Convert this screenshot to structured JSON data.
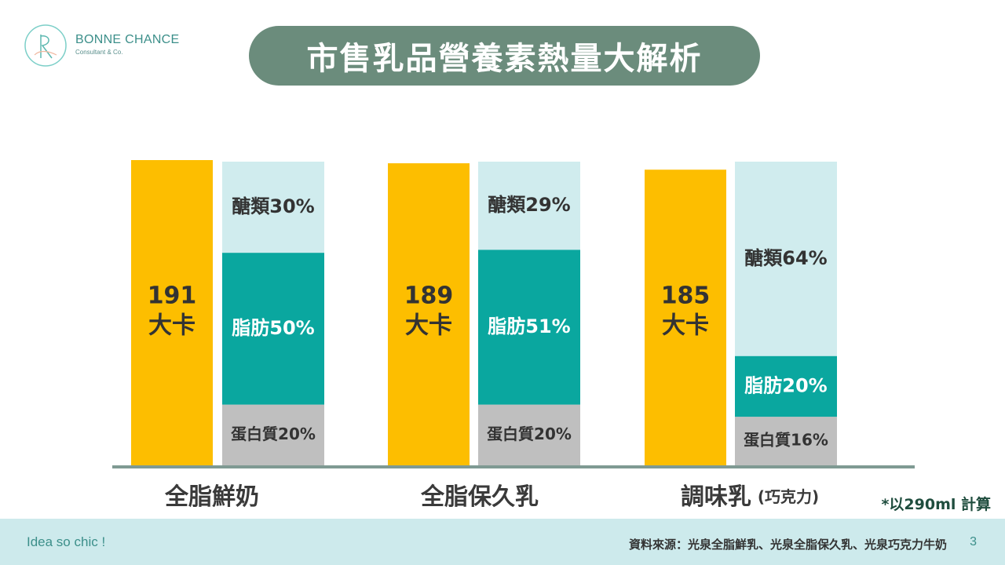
{
  "logo": {
    "name": "BONNE CHANCE",
    "sub": "Consultant & Co."
  },
  "title": "市售乳品營養素熱量大解析",
  "chart_data": {
    "type": "bar",
    "title": "市售乳品營養素熱量大解析",
    "categories": [
      "全脂鮮奶",
      "全脂保久乳",
      "調味乳"
    ],
    "category_notes": [
      "",
      "",
      "(巧克力)"
    ],
    "calories": {
      "values": [
        191,
        189,
        185
      ],
      "number_labels": [
        "191",
        "189",
        "185"
      ],
      "unit_label": "大卡",
      "color": "#fdbe00"
    },
    "composition": {
      "series": [
        {
          "name": "蛋白質",
          "values": [
            20,
            20,
            16
          ],
          "labels": [
            "蛋白質20%",
            "蛋白質20%",
            "蛋白質16%"
          ],
          "color": "#bfbfbf"
        },
        {
          "name": "脂肪",
          "values": [
            50,
            51,
            20
          ],
          "labels": [
            "脂肪50%",
            "脂肪51%",
            "脂肪20%"
          ],
          "color": "#0aa79f"
        },
        {
          "name": "醣類",
          "values": [
            30,
            29,
            64
          ],
          "labels": [
            "醣類30%",
            "醣類29%",
            "醣類64%"
          ],
          "color": "#d0ecee"
        }
      ]
    },
    "legend": "none",
    "grid": false
  },
  "note": "*以290ml 計算",
  "footer": {
    "left": "Idea so chic !",
    "source": "資料來源：光泉全脂鮮乳、光泉全脂保久乳、光泉巧克力牛奶",
    "page": "3"
  }
}
